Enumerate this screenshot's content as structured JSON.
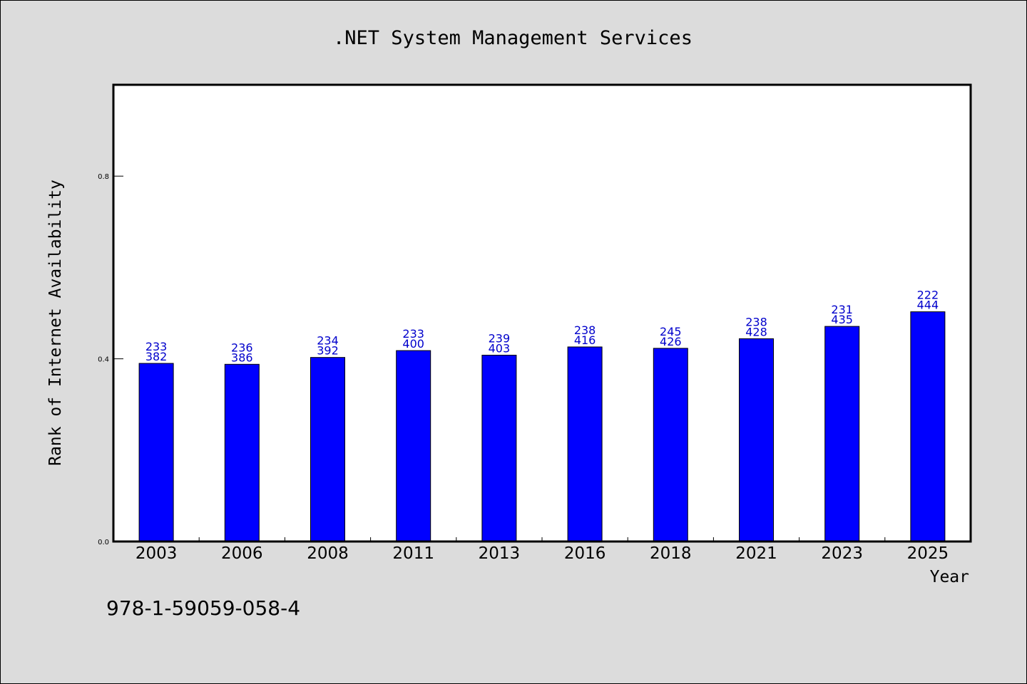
{
  "footer_text": "978-1-59059-058-4",
  "colors": {
    "background": "#dcdcdc",
    "plot_background": "#ffffff",
    "bar": "#0000ff",
    "bar_label": "#0000cc"
  },
  "chart_data": {
    "type": "bar",
    "title": ".NET System Management Services",
    "xlabel": "Year",
    "ylabel": "Rank of Internet Availability",
    "categories": [
      "2003",
      "2006",
      "2008",
      "2011",
      "2013",
      "2016",
      "2018",
      "2021",
      "2023",
      "2025"
    ],
    "values": [
      0.39,
      0.388,
      0.403,
      0.418,
      0.408,
      0.426,
      0.423,
      0.444,
      0.471,
      0.503
    ],
    "bar_labels": [
      [
        "233",
        "382"
      ],
      [
        "236",
        "386"
      ],
      [
        "234",
        "392"
      ],
      [
        "233",
        "400"
      ],
      [
        "239",
        "403"
      ],
      [
        "238",
        "416"
      ],
      [
        "245",
        "426"
      ],
      [
        "238",
        "428"
      ],
      [
        "231",
        "435"
      ],
      [
        "222",
        "444"
      ]
    ],
    "y_ticks": [
      "0.0",
      "0.4",
      "0.8"
    ],
    "ylim": [
      0,
      1.0
    ],
    "grid": false,
    "legend": "none"
  }
}
